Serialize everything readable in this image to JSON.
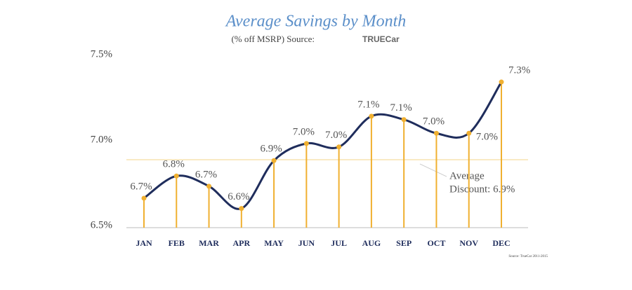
{
  "chart_data": {
    "type": "line",
    "title": "Average Savings by Month",
    "subtitle": "(% off MSRP) Source:",
    "source_logo": "TRUECar",
    "source_note": "Source: TrueCar 2011-2015",
    "categories": [
      "JAN",
      "FEB",
      "MAR",
      "APR",
      "MAY",
      "JUN",
      "JUL",
      "AUG",
      "SEP",
      "OCT",
      "NOV",
      "DEC"
    ],
    "series": [
      {
        "name": "Average Savings",
        "color": "#1f2d5c",
        "marker_color": "#f0b030",
        "values": [
          6.66,
          6.79,
          6.73,
          6.6,
          6.88,
          6.98,
          6.96,
          7.14,
          7.12,
          7.04,
          7.04,
          7.34
        ],
        "value_labels": [
          "6.7%",
          "6.8%",
          "6.7%",
          "6.6%",
          "6.9%",
          "7.0%",
          "7.0%",
          "7.1%",
          "7.1%",
          "7.0%",
          "7.0%",
          "7.3%"
        ]
      }
    ],
    "average": 6.885,
    "average_label": [
      "Average",
      "Discount: 6.9%"
    ],
    "ylim": [
      6.5,
      7.5
    ],
    "yticks": [
      {
        "value": 6.5,
        "label": "6.5%"
      },
      {
        "value": 7.0,
        "label": "7.0%"
      },
      {
        "value": 7.5,
        "label": "7.5%"
      }
    ]
  }
}
